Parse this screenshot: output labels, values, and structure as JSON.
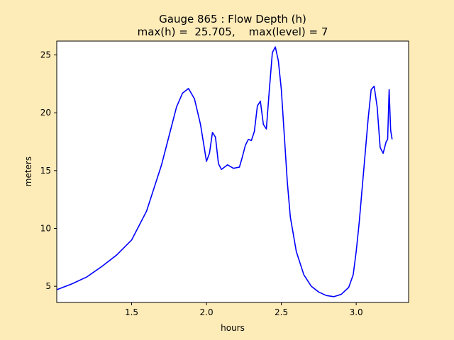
{
  "chart_data": {
    "type": "line",
    "title_line1": "Gauge 865 : Flow Depth (h)",
    "title_line2": "max(h) =  25.705,    max(level) = 7",
    "xlabel": "hours",
    "ylabel": "meters",
    "xlim": [
      1.0,
      3.35
    ],
    "ylim": [
      3.6,
      26.2
    ],
    "xticks": [
      "1.5",
      "2.0",
      "2.5",
      "3.0"
    ],
    "yticks": [
      "5",
      "10",
      "15",
      "20",
      "25"
    ],
    "grid": false,
    "colors": {
      "line": "#0000ff",
      "axes_bg": "#ffffff",
      "figure_bg": "#fdebb8"
    },
    "series": [
      {
        "x": [
          1.0,
          1.1,
          1.2,
          1.3,
          1.4,
          1.5,
          1.6,
          1.7,
          1.75,
          1.8,
          1.84,
          1.88,
          1.92,
          1.96,
          1.98,
          2.0,
          2.02,
          2.04,
          2.06,
          2.08,
          2.1,
          2.14,
          2.18,
          2.22,
          2.24,
          2.26,
          2.28,
          2.3,
          2.32,
          2.34,
          2.36,
          2.38,
          2.4,
          2.42,
          2.44,
          2.46,
          2.48,
          2.5,
          2.52,
          2.54,
          2.56,
          2.6,
          2.65,
          2.7,
          2.75,
          2.8,
          2.85,
          2.9,
          2.95,
          2.98,
          3.0,
          3.02,
          3.04,
          3.06,
          3.08,
          3.1,
          3.12,
          3.14,
          3.16,
          3.18,
          3.2,
          3.21,
          3.22,
          3.23,
          3.24
        ],
        "y": [
          4.7,
          5.2,
          5.8,
          6.7,
          7.7,
          9.0,
          11.5,
          15.5,
          18.0,
          20.5,
          21.7,
          22.1,
          21.2,
          19.0,
          17.4,
          15.8,
          16.5,
          18.3,
          17.9,
          15.6,
          15.1,
          15.5,
          15.2,
          15.3,
          16.2,
          17.2,
          17.7,
          17.6,
          18.4,
          20.6,
          21.0,
          19.0,
          18.6,
          22.0,
          25.2,
          25.7,
          24.5,
          22.0,
          18.0,
          14.0,
          11.0,
          8.0,
          6.0,
          5.0,
          4.5,
          4.2,
          4.1,
          4.3,
          4.9,
          6.0,
          8.0,
          10.5,
          13.5,
          16.5,
          19.5,
          22.0,
          22.3,
          20.5,
          17.0,
          16.5,
          17.5,
          17.7,
          22.0,
          18.5,
          17.7
        ]
      }
    ]
  }
}
